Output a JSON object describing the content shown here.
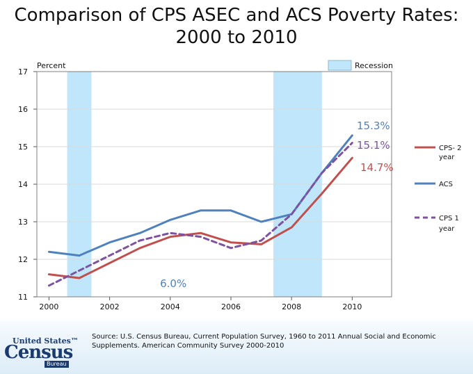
{
  "chart_data": {
    "type": "line",
    "title": "Comparison of CPS ASEC and ACS Poverty Rates: 2000 to 2010",
    "ylabel": "Percent",
    "xlabel": "",
    "xlim": [
      1999.6,
      2011.3
    ],
    "ylim": [
      11,
      17
    ],
    "x_ticks": [
      2000,
      2002,
      2004,
      2006,
      2008,
      2010
    ],
    "y_ticks": [
      11,
      12,
      13,
      14,
      15,
      16,
      17
    ],
    "grid": true,
    "recession_label": "Recession",
    "recessions": [
      [
        2000.6,
        2001.4
      ],
      [
        2007.4,
        2009.0
      ]
    ],
    "series": [
      {
        "name": "CPS- 2 year",
        "color": "#c0504d",
        "dash": false,
        "x": [
          2000,
          2001,
          2002,
          2003,
          2004,
          2005,
          2006,
          2007,
          2008,
          2009,
          2010
        ],
        "values": [
          11.6,
          11.5,
          11.9,
          12.3,
          12.6,
          12.7,
          12.45,
          12.4,
          12.85,
          13.75,
          14.7
        ],
        "end_label": "14.7%"
      },
      {
        "name": "ACS",
        "color": "#4f81bd",
        "dash": false,
        "x": [
          2000,
          2001,
          2002,
          2003,
          2004,
          2005,
          2006,
          2007,
          2008,
          2009,
          2010
        ],
        "values": [
          12.2,
          12.1,
          12.45,
          12.7,
          13.05,
          13.3,
          13.3,
          13.0,
          13.2,
          14.3,
          15.3
        ],
        "end_label": "15.3%"
      },
      {
        "name": "CPS 1 year",
        "color": "#7f51a1",
        "dash": true,
        "x": [
          2000,
          2001,
          2002,
          2003,
          2004,
          2005,
          2006,
          2007,
          2008,
          2009,
          2010
        ],
        "values": [
          11.3,
          11.7,
          12.1,
          12.5,
          12.7,
          12.6,
          12.3,
          12.5,
          13.2,
          14.3,
          15.1
        ],
        "end_label": "15.1%"
      }
    ],
    "annotations": [
      {
        "text": "6.0%",
        "x": 2004.1,
        "y": 11.35,
        "color": "#4f81bd"
      }
    ]
  },
  "footer": {
    "source": "Source: U.S. Census Bureau, Current Population Survey, 1960 to 2011 Annual Social and Economic Supplements.  American Community Survey 2000-2010",
    "logo_top": "United States™",
    "logo_main": "Census",
    "logo_bureau": "Bureau"
  }
}
